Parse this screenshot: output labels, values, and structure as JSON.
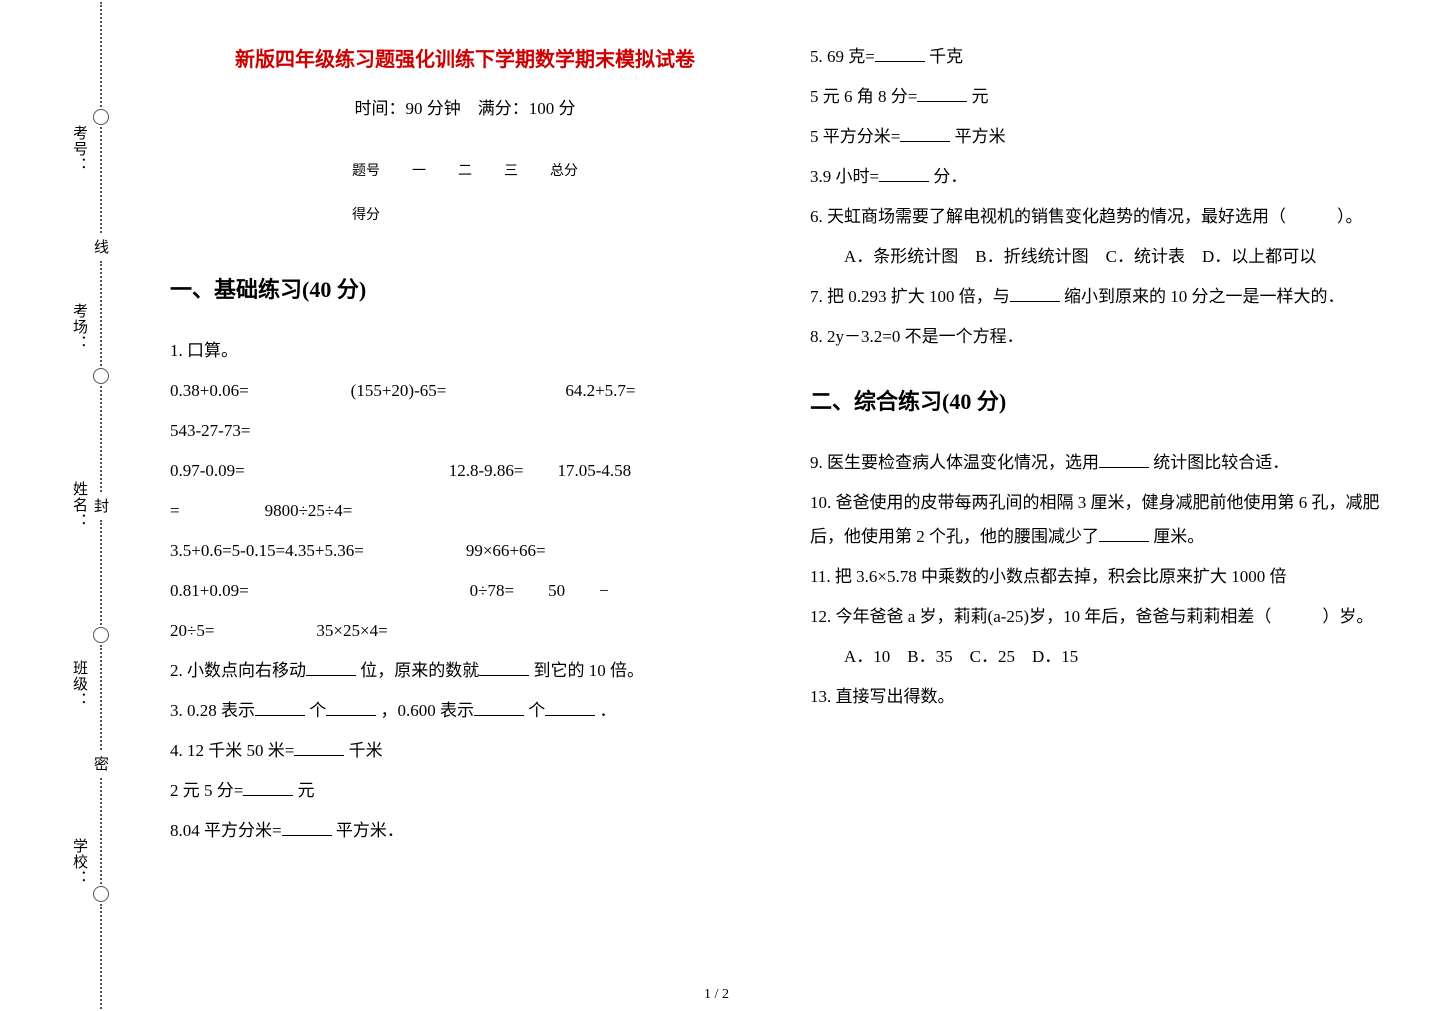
{
  "spine": {
    "labels": [
      "考号：",
      "考场：",
      "姓名：",
      "班级：",
      "学校："
    ],
    "seal": [
      "密",
      "封",
      "线"
    ]
  },
  "header": {
    "title": "新版四年级练习题强化训练下学期数学期末模拟试卷",
    "subtitle": "时间：90 分钟　满分：100 分",
    "table_headers": [
      "题号",
      "一",
      "二",
      "三",
      "总分"
    ],
    "table_row2": "得分"
  },
  "section1": {
    "heading": "一、基础练习(40 分)",
    "q1_label": "1. 口算。",
    "q1_lines": [
      "0.38+0.06=　　　　　　(155+20)-65=　　　　　　　64.2+5.7=",
      "543-27-73=",
      "0.97-0.09=　　　　　　　　　　　　12.8-9.86=　　17.05-4.58",
      "=　　　　　9800÷25÷4=",
      "3.5+0.6=5-0.15=4.35+5.36=　　　　　　99×66+66=",
      "0.81+0.09=　　　　　　　　　　　　　0÷78=　　50　　−",
      "20÷5=　　　　　　35×25×4="
    ],
    "q2_a": "2. 小数点向右移动",
    "q2_b": "位，原来的数就",
    "q2_c": "到它的 10 倍。",
    "q3_a": "3. 0.28 表示",
    "q3_b": "个",
    "q3_c": "，0.600 表示",
    "q3_d": "个",
    "q3_e": "．",
    "q4_a": "4. 12 千米 50 米=",
    "q4_b": "千米",
    "q4_line2a": "2 元 5 分=",
    "q4_line2b": "元",
    "q4_line3a": "8.04 平方分米=",
    "q4_line3b": "平方米．"
  },
  "col2": {
    "q5_a": "5. 69 克=",
    "q5_b": "千克",
    "q5_l2a": "5 元 6 角 8 分=",
    "q5_l2b": "元",
    "q5_l3a": "5 平方分米=",
    "q5_l3b": "平方米",
    "q5_l4a": "3.9 小时=",
    "q5_l4b": "分．",
    "q6_a": "6. 天虹商场需要了解电视机的销售变化趋势的情况，最好选用（　　　）。",
    "q6_opts": "　A．条形统计图　B．折线统计图　C．统计表　D．以上都可以",
    "q7_a": "7. 把 0.293 扩大 100 倍，与",
    "q7_b": "缩小到原来的 10 分之一是一样大的．",
    "q8": "8. 2y－3.2=0 不是一个方程．",
    "section2_heading": "二、综合练习(40 分)",
    "q9_a": "9. 医生要检查病人体温变化情况，选用",
    "q9_b": "统计图比较合适．",
    "q10_a": "10. 爸爸使用的皮带每两孔间的相隔 3 厘米，健身减肥前他使用第 6 孔，减肥后，他使用第 2 个孔，他的腰围减少了",
    "q10_b": "厘米。",
    "q11": "11. 把 3.6×5.78 中乘数的小数点都去掉，积会比原来扩大 1000 倍",
    "q12": "12. 今年爸爸 a 岁，莉莉(a-25)岁，10 年后，爸爸与莉莉相差（　　　）岁。",
    "q12_opts": "　A．10　B．35　C．25　D．15",
    "q13": "13. 直接写出得数。"
  },
  "pager": "1 / 2"
}
